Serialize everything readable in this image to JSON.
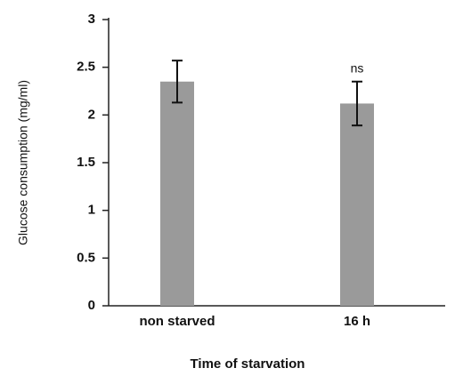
{
  "chart_data": {
    "type": "bar",
    "y_label": "Glucose consumption (mg/ml)",
    "x_label": "Time of starvation",
    "categories": [
      "non starved",
      "16 h"
    ],
    "values": [
      2.35,
      2.12
    ],
    "errors": [
      0.22,
      0.23
    ],
    "color": "#9a9a9a",
    "annotations": [
      null,
      "ns"
    ],
    "ylim": [
      0,
      3
    ],
    "yticks": [
      0,
      0.5,
      1,
      1.5,
      2,
      2.5,
      3
    ],
    "grid": false
  }
}
